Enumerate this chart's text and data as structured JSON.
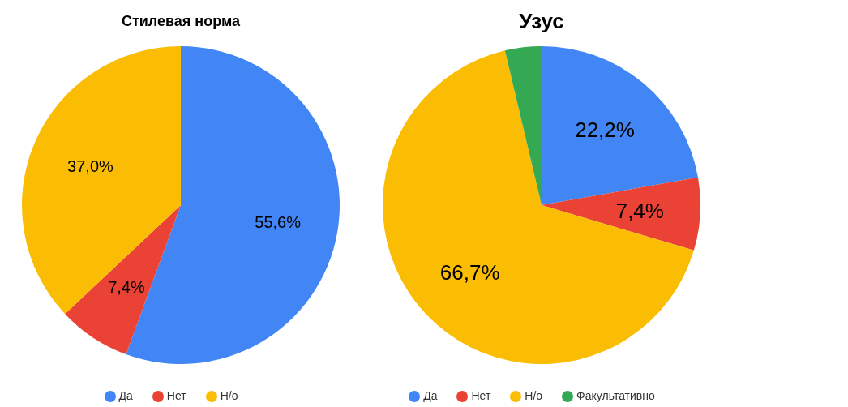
{
  "chart_data": [
    {
      "type": "pie",
      "title": "Стилевая норма",
      "categories": [
        "Да",
        "Нет",
        "Н/о"
      ],
      "values": [
        55.6,
        7.4,
        37.0
      ],
      "colors": [
        "#4285f4",
        "#ea4335",
        "#fbbc04"
      ],
      "value_labels": [
        "55,6%",
        "7,4%",
        "37,0%"
      ],
      "legend": "bottom"
    },
    {
      "type": "pie",
      "title": "Узус",
      "categories": [
        "Да",
        "Нет",
        "Н/о",
        "Факультативно"
      ],
      "values": [
        22.2,
        7.4,
        66.7,
        3.7
      ],
      "colors": [
        "#4285f4",
        "#ea4335",
        "#fbbc04",
        "#34a853"
      ],
      "value_labels": [
        "22,2%",
        "7,4%",
        "66,7%",
        null
      ],
      "legend": "bottom"
    }
  ]
}
